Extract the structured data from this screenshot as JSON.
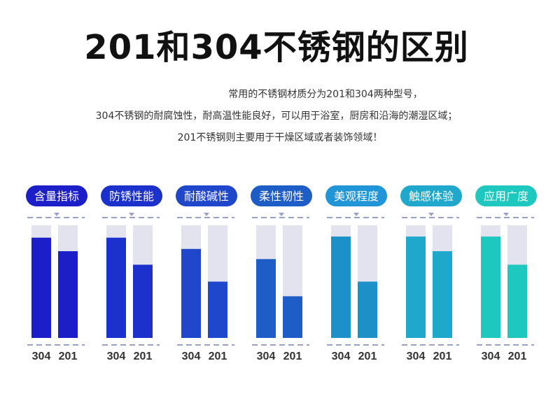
{
  "header": {
    "title": "201和304不锈钢的区别",
    "description": [
      "常用的不锈钢材质分为201和304两种型号，",
      "304不锈钢的耐腐蚀性，耐高温性能良好，可以用于浴室，厨房和沿海的潮湿区域；",
      "201不锈钢则主要用于干燥区域或者装饰领域！"
    ]
  },
  "chart_data": {
    "type": "bar",
    "ylim": [
      0,
      100
    ],
    "grid": false,
    "panels": [
      {
        "title": "含量指标",
        "color": "#1c1fc8",
        "pill_color": "#1c1fc8",
        "categories": [
          "304",
          "201"
        ],
        "values": [
          89,
          77
        ]
      },
      {
        "title": "防锈性能",
        "color": "#1c31cc",
        "pill_color": "#1c31cc",
        "categories": [
          "304",
          "201"
        ],
        "values": [
          89,
          65
        ]
      },
      {
        "title": "耐酸碱性",
        "color": "#1f47cc",
        "pill_color": "#1f47cc",
        "categories": [
          "304",
          "201"
        ],
        "values": [
          79,
          50
        ]
      },
      {
        "title": "柔性韧性",
        "color": "#1f5dc6",
        "pill_color": "#1f5dc6",
        "categories": [
          "304",
          "201"
        ],
        "values": [
          70,
          37
        ]
      },
      {
        "title": "美观程度",
        "color": "#1e90c8",
        "pill_color": "#2096d8",
        "categories": [
          "304",
          "201"
        ],
        "values": [
          90,
          50
        ]
      },
      {
        "title": "触感体验",
        "color": "#1fa8cc",
        "pill_color": "#1fa8cc",
        "categories": [
          "304",
          "201"
        ],
        "values": [
          90,
          77
        ]
      },
      {
        "title": "应用广度",
        "color": "#1fc8be",
        "pill_color": "#1fc8be",
        "categories": [
          "304",
          "201"
        ],
        "values": [
          90,
          65
        ]
      }
    ],
    "track_color": "#e2e3ee",
    "baseline_color": "#9a9fc4"
  }
}
